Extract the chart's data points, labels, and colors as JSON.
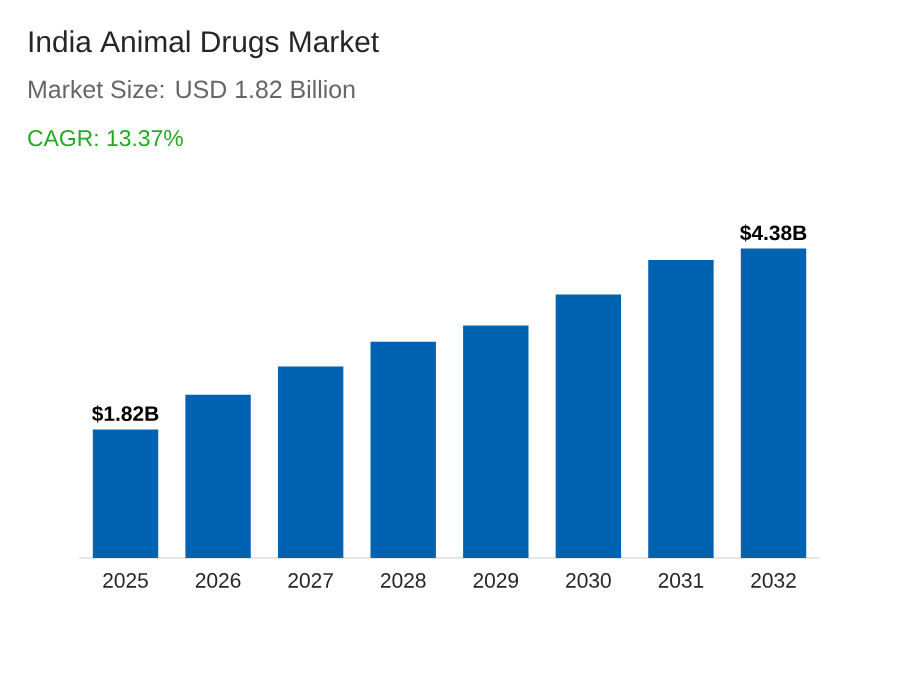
{
  "chart_data": {
    "type": "bar",
    "title": "India Animal Drugs Market",
    "subtitle": "Market Size: USD 1.82 Billion",
    "annotations": [
      "CAGR: 13.37%"
    ],
    "categories": [
      "2025",
      "2026",
      "2027",
      "2028",
      "2029",
      "2030",
      "2031",
      "2032"
    ],
    "values": [
      1.82,
      2.31,
      2.71,
      3.06,
      3.29,
      3.73,
      4.22,
      4.38
    ],
    "value_labels": [
      "$1.82B",
      null,
      null,
      null,
      null,
      null,
      null,
      "$4.38B"
    ],
    "color": "#0063b1"
  }
}
